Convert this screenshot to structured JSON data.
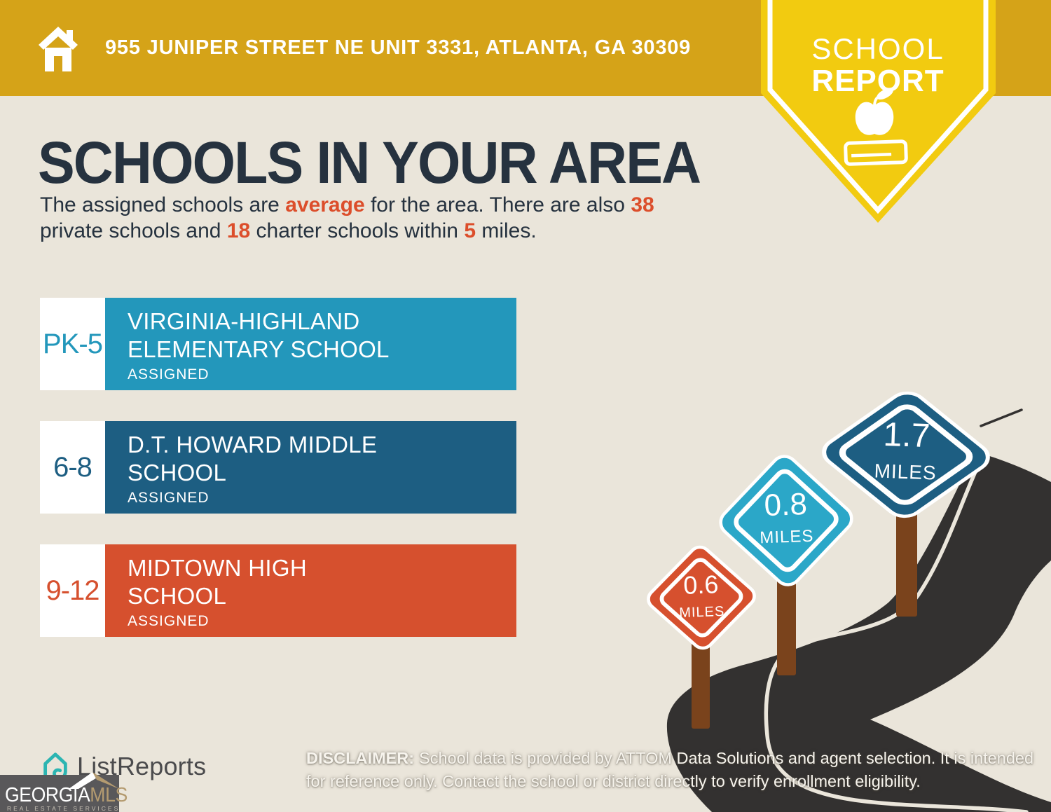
{
  "header": {
    "address": "955 JUNIPER STREET NE UNIT 3331, ATLANTA, GA 30309"
  },
  "badge": {
    "line1": "SCHOOL",
    "line2": "REPORT"
  },
  "title": "SCHOOLS IN YOUR AREA",
  "subtitle": {
    "lines": [
      [
        {
          "text": "The assigned schools are "
        },
        {
          "text": "average",
          "hl": true
        },
        {
          "text": " for the area. There are also "
        },
        {
          "text": "38",
          "hl": true
        }
      ],
      [
        {
          "text": "private schools and "
        },
        {
          "text": "18",
          "hl": true
        },
        {
          "text": " charter schools within "
        },
        {
          "text": "5",
          "hl": true
        },
        {
          "text": " miles."
        }
      ]
    ]
  },
  "schools": [
    {
      "grades": "PK-5",
      "name_line1": "VIRGINIA-HIGHLAND",
      "name_line2": "ELEMENTARY SCHOOL",
      "status": "ASSIGNED",
      "color": "#2397BB"
    },
    {
      "grades": "6-8",
      "name_line1": "D.T. HOWARD MIDDLE",
      "name_line2": "SCHOOL",
      "status": "ASSIGNED",
      "color": "#1D5E82"
    },
    {
      "grades": "9-12",
      "name_line1": "MIDTOWN HIGH",
      "name_line2": "SCHOOL",
      "status": "ASSIGNED",
      "color": "#D6502E"
    }
  ],
  "signs": [
    {
      "distance": "0.6",
      "unit": "MILES",
      "color": "#D6502E"
    },
    {
      "distance": "0.8",
      "unit": "MILES",
      "color": "#2BA7C8"
    },
    {
      "distance": "1.7",
      "unit": "MILES",
      "color": "#1D5E82"
    }
  ],
  "footer": {
    "listreports": "ListReports",
    "georgia": "GEORGIA",
    "mls": "MLS",
    "mls_sub": "REAL ESTATE SERVICES",
    "disclaimer_label": "DISCLAIMER:",
    "disclaimer_line1": "School data is provided by ATTOM Data Solutions and agent selection. It is intended",
    "disclaimer_line2": "for reference only. Contact the school or district directly to verify enrollment eligibility."
  },
  "colors": {
    "header_gold": "#D5A318",
    "badge_yellow": "#F2CB10",
    "background_cream": "#EAE5DA",
    "heading_navy": "#26323F",
    "accent_orange": "#DC4E2B",
    "elementary_teal": "#2397BB",
    "middle_blue": "#1D5E82",
    "high_orange": "#D6502E",
    "road_charcoal": "#333130",
    "post_brown": "#7A431C"
  }
}
